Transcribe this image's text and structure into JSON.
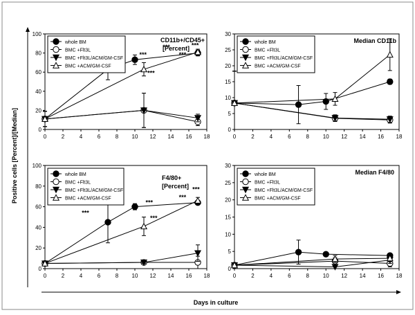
{
  "figure": {
    "y_axis_label": "Positive cells [Percent]/[Median]",
    "x_axis_label": "Days in culture",
    "colors": {
      "frame": "#000000",
      "line": "#000000",
      "marker_fill_filled": "#000000",
      "marker_fill_open": "#ffffff",
      "background": "#ffffff"
    }
  },
  "chart_data": [
    {
      "id": "p1",
      "type": "line",
      "title": "CD11b+/CD45+",
      "subtitle": "[Percent]",
      "xlim": [
        0,
        18
      ],
      "ylim": [
        0,
        100
      ],
      "x_ticks": [
        "0",
        "2",
        "4",
        "6",
        "8",
        "10",
        "12",
        "14",
        "16",
        "18"
      ],
      "y_ticks": [
        "0",
        "20",
        "40",
        "60",
        "80",
        "100"
      ],
      "legend": [
        "whole BM",
        "BMC +Flt3L",
        "BMC +Flt3L/ACM/GM-CSF",
        "BMC +ACM/GM-CSF"
      ],
      "series": [
        {
          "name": "whole BM",
          "marker": "circle-filled",
          "x": [
            0,
            7,
            10,
            17
          ],
          "y": [
            11,
            63,
            73,
            80
          ],
          "err": [
            8,
            11,
            5,
            3
          ]
        },
        {
          "name": "BMC +Flt3L",
          "marker": "circle-open",
          "x": [
            0,
            11,
            17
          ],
          "y": [
            11,
            20,
            8
          ],
          "err": [
            8,
            18,
            4
          ]
        },
        {
          "name": "BMC +Flt3L/ACM/GM-CSF",
          "marker": "triangle-down-filled",
          "x": [
            0,
            11,
            17
          ],
          "y": [
            11,
            20,
            12
          ],
          "err": [
            8,
            18,
            4
          ]
        },
        {
          "name": "BMC +ACM/GM-CSF",
          "marker": "triangle-up-open",
          "x": [
            0,
            11,
            17
          ],
          "y": [
            11,
            63,
            81
          ],
          "err": [
            8,
            7,
            3
          ]
        }
      ],
      "annotations": [
        {
          "text": "***",
          "x": 6.2,
          "y": 65
        },
        {
          "text": "***",
          "x": 10.9,
          "y": 76
        },
        {
          "text": "***",
          "x": 13.5,
          "y": 84
        },
        {
          "text": "***",
          "x": 15.3,
          "y": 76
        },
        {
          "text": "***",
          "x": 16.7,
          "y": 86
        },
        {
          "text": "***",
          "x": 11.8,
          "y": 57
        }
      ]
    },
    {
      "id": "p2",
      "type": "line",
      "title": "Median CD11b",
      "xlim": [
        0,
        18
      ],
      "ylim": [
        0,
        30
      ],
      "x_ticks": [
        "0",
        "2",
        "4",
        "6",
        "8",
        "10",
        "12",
        "14",
        "16",
        "18"
      ],
      "y_ticks": [
        "0",
        "5",
        "10",
        "15",
        "20",
        "25",
        "30"
      ],
      "legend": [
        "whole BM",
        "BMC +Flt3L",
        "BMC +Flt3L/ACM/GM-CSF",
        "BMC +ACM/GM-CSF"
      ],
      "series": [
        {
          "name": "whole BM",
          "marker": "circle-filled",
          "x": [
            0,
            7,
            10,
            17
          ],
          "y": [
            8.3,
            7.8,
            8.8,
            15
          ],
          "err": [
            10,
            6,
            2.5,
            0.8
          ]
        },
        {
          "name": "BMC +Flt3L",
          "marker": "circle-open",
          "x": [
            0,
            11,
            17
          ],
          "y": [
            8.3,
            3.5,
            3
          ],
          "err": [
            10,
            1,
            1
          ]
        },
        {
          "name": "BMC +Flt3L/ACM/GM-CSF",
          "marker": "triangle-down-filled",
          "x": [
            0,
            11,
            17
          ],
          "y": [
            8.3,
            3.6,
            3.2
          ],
          "err": [
            10,
            1,
            1
          ]
        },
        {
          "name": "BMC +ACM/GM-CSF",
          "marker": "triangle-up-open",
          "x": [
            0,
            11,
            17
          ],
          "y": [
            8.3,
            9.6,
            23.5
          ],
          "err": [
            10,
            2,
            5
          ]
        }
      ]
    },
    {
      "id": "p3",
      "type": "line",
      "title": "F4/80+",
      "subtitle": "[Percent]",
      "xlim": [
        0,
        18
      ],
      "ylim": [
        0,
        100
      ],
      "x_ticks": [
        "0",
        "2",
        "4",
        "6",
        "8",
        "10",
        "12",
        "14",
        "16",
        "18"
      ],
      "y_ticks": [
        "0",
        "20",
        "40",
        "60",
        "80",
        "100"
      ],
      "legend": [
        "whole BM",
        "BMC +Flt3L",
        "BMC +Flt3L/ACM/GM-CSF",
        "BMC +ACM/GM-CSF"
      ],
      "series": [
        {
          "name": "whole BM",
          "marker": "circle-filled",
          "x": [
            0,
            7,
            10,
            17
          ],
          "y": [
            5,
            45,
            60,
            64
          ],
          "err": [
            1,
            20,
            3,
            2
          ]
        },
        {
          "name": "BMC +Flt3L",
          "marker": "circle-open",
          "x": [
            0,
            11,
            17
          ],
          "y": [
            5,
            6,
            6
          ],
          "err": [
            1,
            1,
            6
          ]
        },
        {
          "name": "BMC +Flt3L/ACM/GM-CSF",
          "marker": "triangle-down-filled",
          "x": [
            0,
            11,
            17
          ],
          "y": [
            5,
            6,
            15
          ],
          "err": [
            1,
            1,
            8
          ]
        },
        {
          "name": "BMC +ACM/GM-CSF",
          "marker": "triangle-up-open",
          "x": [
            0,
            11,
            17
          ],
          "y": [
            5,
            41,
            66
          ],
          "err": [
            1,
            9,
            3
          ]
        }
      ],
      "annotations": [
        {
          "text": "***",
          "x": 4.5,
          "y": 52
        },
        {
          "text": "***",
          "x": 11.6,
          "y": 62
        },
        {
          "text": "***",
          "x": 12.1,
          "y": 47
        },
        {
          "text": "***",
          "x": 15.3,
          "y": 67
        },
        {
          "text": "***",
          "x": 16.8,
          "y": 75
        }
      ]
    },
    {
      "id": "p4",
      "type": "line",
      "title": "Median F4/80",
      "xlim": [
        0,
        18
      ],
      "ylim": [
        0,
        30
      ],
      "x_ticks": [
        "0",
        "2",
        "4",
        "6",
        "8",
        "10",
        "12",
        "14",
        "16",
        "18"
      ],
      "y_ticks": [
        "0",
        "5",
        "10",
        "15",
        "20",
        "25",
        "30"
      ],
      "legend": [
        "whole BM",
        "BMC +Flt3L",
        "BMC +Flt3L/ACM/GM-CSF",
        "BMC +ACM/GM-CSF"
      ],
      "series": [
        {
          "name": "whole BM",
          "marker": "circle-filled",
          "x": [
            0,
            7,
            10,
            17
          ],
          "y": [
            1,
            4.8,
            4.2,
            3.8
          ],
          "err": [
            0.5,
            3.5,
            0.5,
            0.5
          ]
        },
        {
          "name": "BMC +Flt3L",
          "marker": "circle-open",
          "x": [
            0,
            11,
            17
          ],
          "y": [
            1,
            2.2,
            1.5
          ],
          "err": [
            0.5,
            1,
            1
          ]
        },
        {
          "name": "BMC +Flt3L/ACM/GM-CSF",
          "marker": "triangle-down-filled",
          "x": [
            0,
            11,
            17
          ],
          "y": [
            1,
            0.5,
            2.5
          ],
          "err": [
            0.5,
            0.5,
            1
          ]
        },
        {
          "name": "BMC +ACM/GM-CSF",
          "marker": "triangle-up-open",
          "x": [
            0,
            11,
            17
          ],
          "y": [
            1,
            2.8,
            3
          ],
          "err": [
            0.5,
            1,
            1
          ]
        }
      ]
    }
  ]
}
